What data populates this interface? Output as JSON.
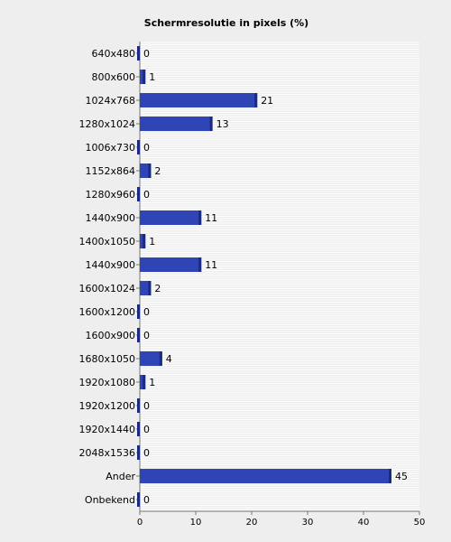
{
  "chart_data": {
    "type": "bar",
    "orientation": "horizontal",
    "title": "Schermresolutie in pixels (%)",
    "xlabel": "",
    "ylabel": "",
    "xlim": [
      0,
      50
    ],
    "xticks": [
      0,
      10,
      20,
      30,
      40,
      50
    ],
    "categories": [
      "640x480",
      "800x600",
      "1024x768",
      "1280x1024",
      "1006x730",
      "1152x864",
      "1280x960",
      "1440x900",
      "1400x1050",
      "1440x900",
      "1600x1024",
      "1600x1200",
      "1600x900",
      "1680x1050",
      "1920x1080",
      "1920x1200",
      "1920x1440",
      "2048x1536",
      "Ander",
      "Onbekend"
    ],
    "values": [
      0,
      1,
      21,
      13,
      0,
      2,
      0,
      11,
      1,
      11,
      2,
      0,
      0,
      4,
      1,
      0,
      0,
      0,
      45,
      0
    ],
    "grid": true,
    "legend": "none",
    "colors": {
      "bar": "#2f45b5",
      "bar_shade": "#1a2a80",
      "background": "#eeeeee",
      "grid": "#ffffff"
    }
  }
}
